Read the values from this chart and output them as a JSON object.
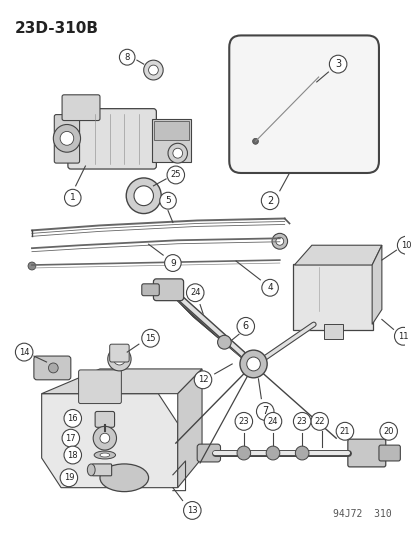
{
  "title": "23D-310B",
  "bg_color": "#ffffff",
  "lc": "#444444",
  "tc": "#222222",
  "footer": "94J72  310",
  "fig_w": 4.14,
  "fig_h": 5.33,
  "dpi": 100
}
